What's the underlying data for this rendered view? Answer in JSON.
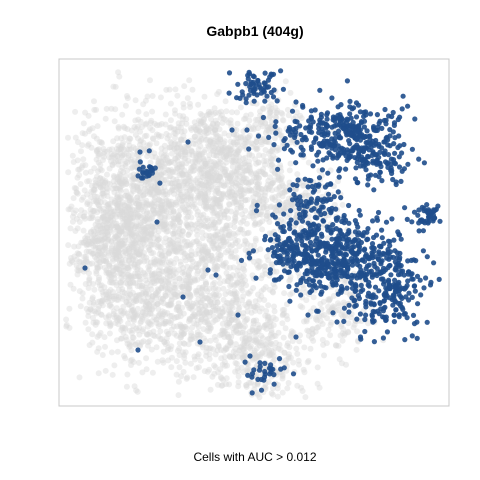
{
  "chart_data": {
    "type": "scatter",
    "title": "Gabpb1 (404g)",
    "xlabel": "Cells with AUC > 0.012",
    "ylabel": "",
    "grid": false,
    "axes_ticks": false,
    "colors": {
      "low": "#d9d9d9",
      "high": "#1f4e8c",
      "frame": "#c8c8c8",
      "background": "#ffffff"
    },
    "point_groups": [
      {
        "name": "below_threshold",
        "color_key": "low"
      },
      {
        "name": "above_threshold",
        "color_key": "high"
      }
    ]
  }
}
